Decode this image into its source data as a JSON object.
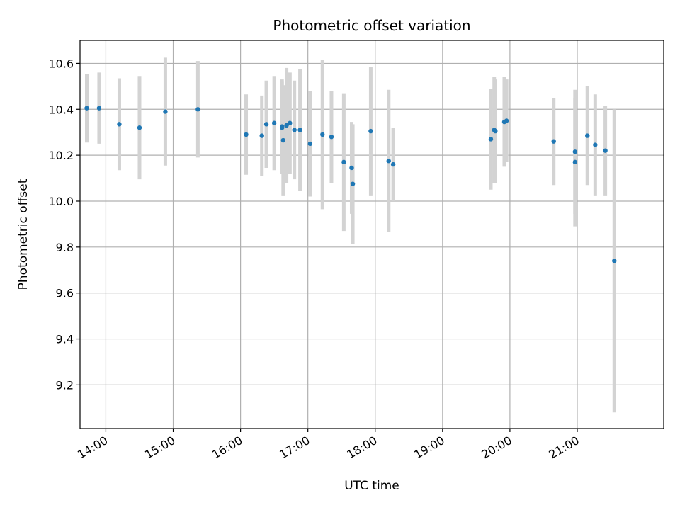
{
  "chart_data": {
    "type": "scatter",
    "title": "Photometric offset variation",
    "xlabel": "UTC time",
    "ylabel": "Photometric offset",
    "x_unit": "UTC hours",
    "xlim": [
      "13:37",
      "22:17"
    ],
    "ylim": [
      9.01,
      10.7
    ],
    "x_ticks": [
      "14:00",
      "15:00",
      "16:00",
      "17:00",
      "18:00",
      "19:00",
      "20:00",
      "21:00"
    ],
    "y_ticks": [
      "9.2",
      "9.4",
      "9.6",
      "9.8",
      "10.0",
      "10.2",
      "10.4",
      "10.6"
    ],
    "grid": true,
    "legend": "none",
    "colors": {
      "points": "#1f77b4",
      "errorbars": "#d3d3d3",
      "grid": "#b0b0b0"
    },
    "series": [
      {
        "points": [
          {
            "x": "13:43",
            "y": 10.405,
            "err": 0.15
          },
          {
            "x": "13:54",
            "y": 10.405,
            "err": 0.155
          },
          {
            "x": "14:12",
            "y": 10.335,
            "err": 0.2
          },
          {
            "x": "14:30",
            "y": 10.32,
            "err": 0.225
          },
          {
            "x": "14:53",
            "y": 10.39,
            "err": 0.235
          },
          {
            "x": "15:22",
            "y": 10.4,
            "err": 0.21
          },
          {
            "x": "16:05",
            "y": 10.29,
            "err": 0.175
          },
          {
            "x": "16:19",
            "y": 10.285,
            "err": 0.175
          },
          {
            "x": "16:23",
            "y": 10.335,
            "err": 0.19
          },
          {
            "x": "16:30",
            "y": 10.34,
            "err": 0.205
          },
          {
            "x": "16:37",
            "y": 10.325,
            "err": 0.205
          },
          {
            "x": "16:37",
            "y": 10.32,
            "err": 0.2
          },
          {
            "x": "16:38",
            "y": 10.265,
            "err": 0.24
          },
          {
            "x": "16:41",
            "y": 10.33,
            "err": 0.25
          },
          {
            "x": "16:44",
            "y": 10.34,
            "err": 0.22
          },
          {
            "x": "16:48",
            "y": 10.31,
            "err": 0.215
          },
          {
            "x": "16:53",
            "y": 10.31,
            "err": 0.265
          },
          {
            "x": "17:02",
            "y": 10.25,
            "err": 0.23
          },
          {
            "x": "17:13",
            "y": 10.29,
            "err": 0.325
          },
          {
            "x": "17:21",
            "y": 10.28,
            "err": 0.2
          },
          {
            "x": "17:32",
            "y": 10.17,
            "err": 0.3
          },
          {
            "x": "17:39",
            "y": 10.145,
            "err": 0.2
          },
          {
            "x": "17:40",
            "y": 10.075,
            "err": 0.26
          },
          {
            "x": "17:56",
            "y": 10.305,
            "err": 0.28
          },
          {
            "x": "18:12",
            "y": 10.175,
            "err": 0.31
          },
          {
            "x": "18:16",
            "y": 10.16,
            "err": 0.16
          },
          {
            "x": "19:43",
            "y": 10.27,
            "err": 0.22
          },
          {
            "x": "19:46",
            "y": 10.31,
            "err": 0.23
          },
          {
            "x": "19:47",
            "y": 10.305,
            "err": 0.225
          },
          {
            "x": "19:55",
            "y": 10.345,
            "err": 0.195
          },
          {
            "x": "19:57",
            "y": 10.35,
            "err": 0.18
          },
          {
            "x": "20:39",
            "y": 10.26,
            "err": 0.19
          },
          {
            "x": "20:58",
            "y": 10.215,
            "err": 0.27
          },
          {
            "x": "20:58",
            "y": 10.17,
            "err": 0.28
          },
          {
            "x": "21:09",
            "y": 10.285,
            "err": 0.215
          },
          {
            "x": "21:16",
            "y": 10.245,
            "err": 0.22
          },
          {
            "x": "21:25",
            "y": 10.22,
            "err": 0.195
          },
          {
            "x": "21:33",
            "y": 9.74,
            "err": 0.66
          }
        ]
      }
    ]
  }
}
